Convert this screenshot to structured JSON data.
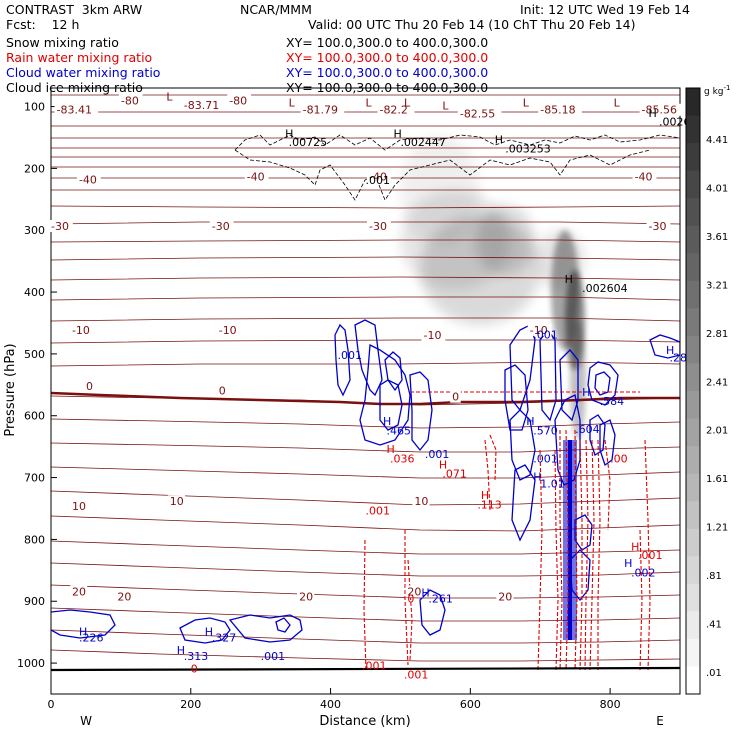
{
  "header": {
    "left1": "CONTRAST  3km ARW",
    "center1": "NCAR/MMM",
    "right1": "Init: 12 UTC Wed 19 Feb 14",
    "left2": "Fcst:    12 h",
    "right2": "Valid: 00 UTC Thu 20 Feb 14 (10 ChT Thu 20 Feb 14)",
    "fields": [
      {
        "name": "Snow mixing ratio",
        "xy": "XY= 100.0,300.0 to 400.0,300.0",
        "color": "#000000"
      },
      {
        "name": "Rain water mixing ratio",
        "xy": "XY= 100.0,300.0 to 400.0,300.0",
        "color": "#e00000"
      },
      {
        "name": "Cloud water mixing ratio",
        "xy": "XY= 100.0,300.0 to 400.0,300.0",
        "color": "#0000cc"
      },
      {
        "name": "Cloud ice mixing ratio",
        "xy": "XY= 100.0,300.0 to 400.0,300.0",
        "color": "#000000"
      }
    ]
  },
  "colors": {
    "temperature": "#7a1010",
    "rain": "#e00000",
    "cloud_water": "#0000cc",
    "cloud_ice": "#000000",
    "snow_shade": "#3a3a3a"
  },
  "chart_data": {
    "type": "cross-section contour",
    "xlabel": "Distance (km)",
    "ylabel": "Pressure (hPa)",
    "xlim": [
      0,
      900
    ],
    "ylim": [
      1050,
      70
    ],
    "x_ticks": [
      "0",
      "200",
      "400",
      "600",
      "800"
    ],
    "y_ticks": [
      "100",
      "200",
      "300",
      "400",
      "500",
      "600",
      "700",
      "800",
      "900",
      "1000"
    ],
    "x_end_labels": {
      "left": "W",
      "right": "E"
    },
    "colorbar": {
      "unit": "g kg",
      "unit_exp": "-1",
      "labels": [
        "4.41",
        "4.01",
        "3.61",
        "3.21",
        "2.81",
        "2.41",
        "2.01",
        "1.61",
        "1.21",
        ".81",
        ".41",
        ".01"
      ]
    },
    "temperature_labels": [
      {
        "text": "-80",
        "x": 100,
        "p": 95
      },
      {
        "text": "-80",
        "x": 255,
        "p": 95
      },
      {
        "text": "-83.71",
        "x": 190,
        "p": 102
      },
      {
        "text": "-83.41",
        "x": 8,
        "p": 110
      },
      {
        "text": "-81.79",
        "x": 360,
        "p": 110
      },
      {
        "text": "-82.2",
        "x": 470,
        "p": 110
      },
      {
        "text": "-82.55",
        "x": 585,
        "p": 116
      },
      {
        "text": "-85.18",
        "x": 700,
        "p": 110
      },
      {
        "text": "-85.56",
        "x": 845,
        "p": 110
      },
      {
        "text": "-40",
        "x": 40,
        "p": 223
      },
      {
        "text": "-40",
        "x": 280,
        "p": 218
      },
      {
        "text": "-40",
        "x": 455,
        "p": 218
      },
      {
        "text": "-40",
        "x": 835,
        "p": 218
      },
      {
        "text": "-30",
        "x": 0,
        "p": 298
      },
      {
        "text": "-30",
        "x": 230,
        "p": 298
      },
      {
        "text": "-30",
        "x": 455,
        "p": 298
      },
      {
        "text": "-30",
        "x": 855,
        "p": 298
      },
      {
        "text": "-10",
        "x": 30,
        "p": 466
      },
      {
        "text": "-10",
        "x": 240,
        "p": 466
      },
      {
        "text": "-10",
        "x": 533,
        "p": 474
      },
      {
        "text": "-10",
        "x": 685,
        "p": 466
      },
      {
        "text": "0",
        "x": 50,
        "p": 557
      },
      {
        "text": "0",
        "x": 240,
        "p": 564
      },
      {
        "text": "0",
        "x": 574,
        "p": 574
      },
      {
        "text": "10",
        "x": 30,
        "p": 751
      },
      {
        "text": "10",
        "x": 170,
        "p": 743
      },
      {
        "text": "10",
        "x": 520,
        "p": 743
      },
      {
        "text": "20",
        "x": 30,
        "p": 889
      },
      {
        "text": "20",
        "x": 95,
        "p": 897
      },
      {
        "text": "20",
        "x": 355,
        "p": 897
      },
      {
        "text": "20",
        "x": 510,
        "p": 889
      },
      {
        "text": "20",
        "x": 640,
        "p": 897
      }
    ],
    "highs_lows": [
      {
        "mark": "L",
        "x": 165,
        "p": 90,
        "color": "#7a1010"
      },
      {
        "mark": "L",
        "x": 340,
        "p": 100,
        "color": "#7a1010"
      },
      {
        "mark": "L",
        "x": 450,
        "p": 100,
        "color": "#7a1010"
      },
      {
        "mark": "L",
        "x": 505,
        "p": 100,
        "color": "#7a1010"
      },
      {
        "mark": "L",
        "x": 560,
        "p": 105,
        "color": "#7a1010"
      },
      {
        "mark": "L",
        "x": 675,
        "p": 100,
        "color": "#7a1010"
      },
      {
        "mark": "L",
        "x": 805,
        "p": 100,
        "color": "#7a1010"
      },
      {
        "mark": "H",
        "x": 855,
        "p": 117,
        "color": "#000000"
      },
      {
        "mark": "H",
        "x": 335,
        "p": 150,
        "color": "#000000"
      },
      {
        "mark": "H",
        "x": 490,
        "p": 150,
        "color": "#000000"
      },
      {
        "mark": "H",
        "x": 635,
        "p": 160,
        "color": "#000000"
      },
      {
        "mark": "H",
        "x": 735,
        "p": 385,
        "color": "#000000"
      },
      {
        "mark": "H",
        "x": 880,
        "p": 500,
        "color": "#0000cc"
      },
      {
        "mark": "H",
        "x": 760,
        "p": 568,
        "color": "#0000cc"
      },
      {
        "mark": "H",
        "x": 475,
        "p": 615,
        "color": "#0000cc"
      },
      {
        "mark": "H",
        "x": 680,
        "p": 615,
        "color": "#0000cc"
      },
      {
        "mark": "H",
        "x": 480,
        "p": 660,
        "color": "#e00000"
      },
      {
        "mark": "H",
        "x": 555,
        "p": 685,
        "color": "#e00000"
      },
      {
        "mark": "H",
        "x": 615,
        "p": 735,
        "color": "#e00000"
      },
      {
        "mark": "H",
        "x": 690,
        "p": 705,
        "color": "#0000cc"
      },
      {
        "mark": "H",
        "x": 830,
        "p": 818,
        "color": "#e00000"
      },
      {
        "mark": "H",
        "x": 820,
        "p": 845,
        "color": "#0000cc"
      },
      {
        "mark": "H",
        "x": 530,
        "p": 892,
        "color": "#0000cc"
      },
      {
        "mark": "H",
        "x": 40,
        "p": 955,
        "color": "#0000cc"
      },
      {
        "mark": "H",
        "x": 220,
        "p": 955,
        "color": "#0000cc"
      },
      {
        "mark": "H",
        "x": 180,
        "p": 985,
        "color": "#0000cc"
      }
    ],
    "value_labels": [
      {
        "text": ".0026",
        "x": 870,
        "p": 131,
        "color": "#000000"
      },
      {
        "text": ".00725",
        "x": 340,
        "p": 164,
        "color": "#000000"
      },
      {
        "text": ".002447",
        "x": 500,
        "p": 164,
        "color": "#000000"
      },
      {
        "text": ".003253",
        "x": 650,
        "p": 174,
        "color": "#000000"
      },
      {
        "text": ".001",
        "x": 450,
        "p": 225,
        "color": "#000000"
      },
      {
        "text": ".002604",
        "x": 760,
        "p": 400,
        "color": "#000000"
      },
      {
        "text": ".001",
        "x": 410,
        "p": 508,
        "color": "#0000cc"
      },
      {
        "text": ".001",
        "x": 690,
        "p": 475,
        "color": "#0000cc"
      },
      {
        "text": ".286",
        "x": 885,
        "p": 512,
        "color": "#0000cc"
      },
      {
        "text": ".584",
        "x": 785,
        "p": 583,
        "color": "#0000cc"
      },
      {
        "text": ".604",
        "x": 750,
        "p": 628,
        "color": "#0000cc"
      },
      {
        "text": ".465",
        "x": 480,
        "p": 630,
        "color": "#0000cc"
      },
      {
        "text": ".570",
        "x": 690,
        "p": 630,
        "color": "#0000cc"
      },
      {
        "text": ".001",
        "x": 535,
        "p": 668,
        "color": "#0000cc"
      },
      {
        "text": ".036",
        "x": 485,
        "p": 676,
        "color": "#e00000"
      },
      {
        "text": ".001",
        "x": 690,
        "p": 676,
        "color": "#0000cc"
      },
      {
        "text": ".00",
        "x": 800,
        "p": 676,
        "color": "#e00000"
      },
      {
        "text": ".071",
        "x": 560,
        "p": 700,
        "color": "#e00000"
      },
      {
        "text": "1.01",
        "x": 700,
        "p": 716,
        "color": "#0000cc"
      },
      {
        "text": ".113",
        "x": 610,
        "p": 750,
        "color": "#e00000"
      },
      {
        "text": ".001",
        "x": 450,
        "p": 760,
        "color": "#e00000"
      },
      {
        "text": ".001",
        "x": 840,
        "p": 832,
        "color": "#e00000"
      },
      {
        "text": ".002",
        "x": 830,
        "p": 860,
        "color": "#0000cc"
      },
      {
        "text": ".261",
        "x": 540,
        "p": 902,
        "color": "#0000cc"
      },
      {
        "text": ".226",
        "x": 40,
        "p": 965,
        "color": "#0000cc"
      },
      {
        "text": ".327",
        "x": 230,
        "p": 965,
        "color": "#0000cc"
      },
      {
        "text": ".313",
        "x": 190,
        "p": 995,
        "color": "#0000cc"
      },
      {
        "text": ".001",
        "x": 300,
        "p": 995,
        "color": "#0000cc"
      },
      {
        "text": "0",
        "x": 510,
        "p": 902,
        "color": "#e00000"
      },
      {
        "text": "0",
        "x": 200,
        "p": 1015,
        "color": "#e00000"
      },
      {
        "text": ".001",
        "x": 445,
        "p": 1010,
        "color": "#e00000"
      },
      {
        "text": ".001",
        "x": 505,
        "p": 1025,
        "color": "#e00000"
      }
    ]
  }
}
